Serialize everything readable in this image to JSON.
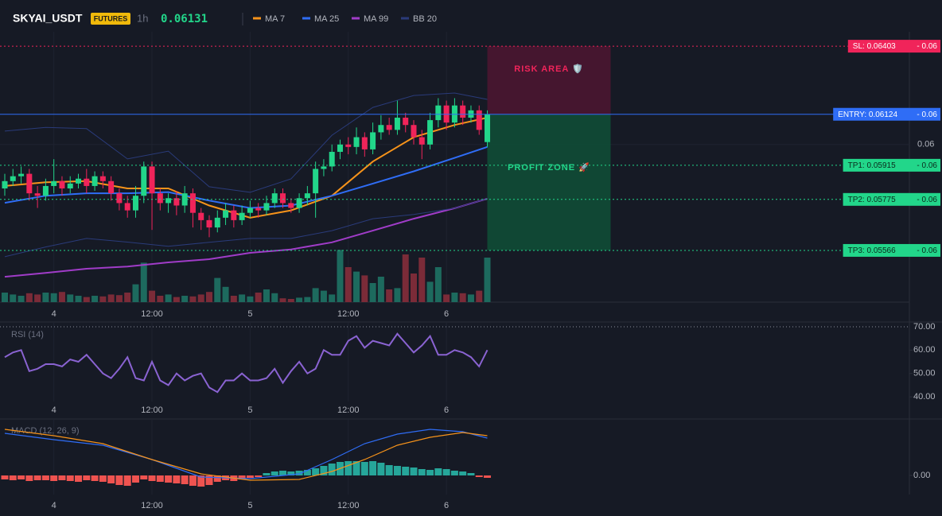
{
  "chart_data": {
    "type": "candlestick",
    "symbol": "SKYAI_USDT",
    "badge": "FUTURES",
    "interval": "1h",
    "last_price": 0.06131,
    "categories": [
      null,
      null,
      null,
      null,
      null,
      null,
      "4",
      null,
      null,
      null,
      null,
      null,
      null,
      null,
      null,
      null,
      null,
      null,
      "12:00",
      null,
      null,
      null,
      null,
      null,
      null,
      null,
      null,
      null,
      null,
      null,
      "5",
      null,
      null,
      null,
      null,
      null,
      null,
      null,
      null,
      null,
      null,
      null,
      "12:00",
      null,
      null,
      null,
      null,
      null,
      null,
      null,
      null,
      null,
      null,
      null,
      "6",
      null,
      null,
      null,
      null,
      null
    ],
    "open": [
      0.0582,
      0.0585,
      0.0587,
      0.0588,
      0.058,
      0.0579,
      0.0583,
      0.0585,
      0.0582,
      0.0584,
      0.0586,
      0.0583,
      0.0587,
      0.0585,
      0.058,
      0.0576,
      0.0573,
      0.0579,
      0.0591,
      0.058,
      0.0576,
      0.0578,
      0.0575,
      0.058,
      0.0572,
      0.0569,
      0.0566,
      0.057,
      0.0573,
      0.0569,
      0.0572,
      0.0574,
      0.0573,
      0.0576,
      0.058,
      0.0576,
      0.0574,
      0.0578,
      0.058,
      0.059,
      0.0591,
      0.0597,
      0.06,
      0.0599,
      0.0603,
      0.0598,
      0.0605,
      0.0608,
      0.0606,
      0.0611,
      0.0608,
      0.0603,
      0.06,
      0.061,
      0.0616,
      0.0609,
      0.0616,
      0.0611,
      0.0614,
      0.0601
    ],
    "high": [
      0.0588,
      0.059,
      0.0591,
      0.059,
      0.0583,
      0.0586,
      0.0594,
      0.0587,
      0.0587,
      0.0588,
      0.059,
      0.0589,
      0.0589,
      0.0587,
      0.0582,
      0.0579,
      0.0583,
      0.0593,
      0.0593,
      0.0582,
      0.058,
      0.0581,
      0.0583,
      0.0582,
      0.0574,
      0.0571,
      0.0573,
      0.0576,
      0.0575,
      0.0575,
      0.0577,
      0.0576,
      0.0579,
      0.0582,
      0.0582,
      0.0578,
      0.058,
      0.0583,
      0.0593,
      0.0594,
      0.06,
      0.0602,
      0.0603,
      0.0607,
      0.0605,
      0.0609,
      0.0612,
      0.0611,
      0.0618,
      0.0613,
      0.061,
      0.0606,
      0.0613,
      0.0619,
      0.0618,
      0.0619,
      0.0618,
      0.0616,
      0.0616,
      0.0614
    ],
    "low": [
      0.0579,
      0.0583,
      0.0584,
      0.0577,
      0.0574,
      0.0577,
      0.058,
      0.0579,
      0.058,
      0.0582,
      0.058,
      0.0581,
      0.0582,
      0.0577,
      0.0573,
      0.057,
      0.057,
      0.0576,
      0.0565,
      0.0573,
      0.0572,
      0.0571,
      0.0572,
      0.0566,
      0.0565,
      0.0562,
      0.0564,
      0.0567,
      0.0566,
      0.0567,
      0.057,
      0.057,
      0.0571,
      0.0574,
      0.0574,
      0.0572,
      0.0572,
      0.0575,
      0.057,
      0.0587,
      0.0589,
      0.0594,
      0.0596,
      0.0596,
      0.0595,
      0.0596,
      0.0602,
      0.0604,
      0.0604,
      0.0605,
      0.06,
      0.0594,
      0.0598,
      0.0607,
      0.0606,
      0.0607,
      0.0608,
      0.0609,
      0.0604,
      0.0599
    ],
    "close": [
      0.0585,
      0.0587,
      0.0588,
      0.058,
      0.0579,
      0.0583,
      0.0585,
      0.0582,
      0.0584,
      0.0586,
      0.0583,
      0.0587,
      0.0585,
      0.058,
      0.0576,
      0.0573,
      0.0579,
      0.0591,
      0.058,
      0.0576,
      0.0578,
      0.0575,
      0.058,
      0.0572,
      0.0569,
      0.0566,
      0.057,
      0.0573,
      0.0569,
      0.0572,
      0.0574,
      0.0573,
      0.0576,
      0.058,
      0.0576,
      0.0574,
      0.0578,
      0.058,
      0.059,
      0.0591,
      0.0597,
      0.06,
      0.0599,
      0.0603,
      0.0598,
      0.0605,
      0.0608,
      0.0606,
      0.0611,
      0.0608,
      0.0603,
      0.06,
      0.061,
      0.0616,
      0.0609,
      0.0616,
      0.0611,
      0.0614,
      0.0606,
      0.06124
    ],
    "up_color": "#22d68a",
    "down_color": "#f0245a",
    "ylim": [
      0.05354,
      0.06462
    ],
    "yticks": [
      0.06
    ],
    "overlays": [
      {
        "name": "MA 7",
        "color": "#f7931a",
        "x": [
          0,
          5,
          10,
          15,
          20,
          25,
          30,
          35,
          40,
          45,
          50,
          55,
          59
        ],
        "values": [
          0.0583,
          0.05845,
          0.0585,
          0.0582,
          0.0582,
          0.0575,
          0.057,
          0.0573,
          0.0579,
          0.0593,
          0.0603,
          0.0608,
          0.0611
        ]
      },
      {
        "name": "MA 25",
        "color": "#2f6df6",
        "x": [
          0,
          5,
          10,
          15,
          20,
          25,
          30,
          35,
          40,
          45,
          50,
          55,
          59
        ],
        "values": [
          0.05761,
          0.0579,
          0.058,
          0.058,
          0.05805,
          0.0577,
          0.0574,
          0.0575,
          0.0579,
          0.0584,
          0.0589,
          0.05945,
          0.0599
        ]
      },
      {
        "name": "MA 99",
        "color": "#a03cc8",
        "x": [
          0,
          5,
          10,
          15,
          20,
          25,
          30,
          35,
          40,
          45,
          50,
          55,
          59
        ],
        "values": [
          0.05458,
          0.05474,
          0.05491,
          0.055,
          0.05517,
          0.0553,
          0.05556,
          0.0557,
          0.05599,
          0.05647,
          0.05696,
          0.05739,
          0.05778
        ]
      },
      {
        "name": "BB 20",
        "color": "#2a3b7a",
        "x": [
          0,
          5,
          10,
          15,
          20,
          25,
          30,
          35,
          40,
          45,
          50,
          55,
          59
        ],
        "values": [
          0.06055,
          0.0607,
          0.06065,
          0.05941,
          0.05973,
          0.05827,
          0.05804,
          0.05859,
          0.06038,
          0.06152,
          0.06201,
          0.06211,
          0.06185
        ],
        "lower": [
          0.0554,
          0.0558,
          0.05615,
          0.056,
          0.05583,
          0.05599,
          0.05615,
          0.05615,
          0.05647,
          0.05696,
          0.05713,
          0.05739,
          0.05778
        ]
      }
    ],
    "levels": [
      {
        "label": "SL: 0.06403",
        "price": 0.06403,
        "axis_label": "- 0.06",
        "color": "#f0245a"
      },
      {
        "label": "ENTRY: 0.06124",
        "price": 0.06124,
        "axis_label": "- 0.06",
        "color": "#2f6df6"
      },
      {
        "label": "TP1: 0.05915",
        "price": 0.05915,
        "axis_label": "- 0.06",
        "color": "#22d68a"
      },
      {
        "label": "TP2: 0.05775",
        "price": 0.05775,
        "axis_label": "- 0.06",
        "color": "#22d68a"
      },
      {
        "label": "TP3: 0.05566",
        "price": 0.05566,
        "axis_label": "- 0.06",
        "color": "#22d68a"
      }
    ],
    "zones": [
      {
        "label": "RISK AREA 🛡️",
        "color": "#4a1631",
        "text_color": "#f0245a"
      },
      {
        "label": "PROFIT ZONE 🚀",
        "color": "#0f4d36",
        "text_color": "#22d68a"
      }
    ],
    "volume": {
      "values": [
        15,
        12,
        10,
        14,
        12,
        15,
        14,
        16,
        12,
        10,
        8,
        10,
        9,
        12,
        11,
        15,
        28,
        62,
        18,
        10,
        12,
        8,
        10,
        9,
        12,
        16,
        38,
        24,
        10,
        12,
        9,
        15,
        20,
        14,
        6,
        5,
        7,
        8,
        22,
        18,
        12,
        82,
        55,
        48,
        42,
        30,
        40,
        20,
        22,
        75,
        45,
        70,
        32,
        55,
        12,
        15,
        14,
        12,
        18,
        70
      ],
      "ylim": [
        0,
        100
      ],
      "up_color": "#1d6a5e",
      "down_color": "#7b2b38"
    },
    "rsi": {
      "title": "RSI (14)",
      "color": "#8a63d2",
      "ylim": [
        38,
        71
      ],
      "yticks": [
        {
          "value": 70,
          "label": "70.00"
        },
        {
          "value": 60,
          "label": "60.00"
        },
        {
          "value": 50,
          "label": "50.00"
        },
        {
          "value": 40,
          "label": "40.00"
        }
      ],
      "values": [
        57,
        59,
        60,
        51,
        52,
        54,
        54,
        53,
        56,
        55,
        58,
        54,
        50,
        48,
        52,
        57,
        48,
        47,
        55,
        47,
        45,
        50,
        47,
        49,
        50,
        44,
        42,
        47,
        47,
        50,
        47,
        47,
        48,
        52,
        46,
        51,
        55,
        50,
        52,
        60,
        58,
        58,
        64,
        66,
        61,
        64,
        63,
        62,
        67,
        63,
        59,
        62,
        66,
        58,
        58,
        60,
        59,
        57,
        53,
        60
      ]
    },
    "macd": {
      "title": "MACD (12, 26, 9)",
      "ylim": [
        -0.00024,
        0.0007
      ],
      "yticks": [
        {
          "value": 0,
          "label": "0.00"
        }
      ],
      "x": [
        0,
        6,
        12,
        18,
        24,
        30,
        36,
        40,
        44,
        48,
        52,
        56,
        59
      ],
      "macd": {
        "color": "#2f6df6",
        "values": [
          0.00053,
          0.00045,
          0.00038,
          0.0002,
          -2e-05,
          -4e-05,
          2e-05,
          0.0002,
          0.0004,
          0.00052,
          0.00058,
          0.00055,
          0.00047
        ]
      },
      "signal": {
        "color": "#f7931a",
        "values": [
          0.00058,
          0.0005,
          0.0004,
          0.0002,
          2e-05,
          -6e-05,
          -5e-05,
          5e-05,
          0.0002,
          0.00038,
          0.00048,
          0.00054,
          0.0005
        ]
      },
      "histogram": {
        "up_color": "#26a69a",
        "down_color": "#ef5350",
        "values": [
          -5e-05,
          -6e-05,
          -5e-05,
          -7e-05,
          -6e-05,
          -6e-05,
          -7e-05,
          -6e-05,
          -7e-05,
          -8e-05,
          -6e-05,
          -7e-05,
          -8e-05,
          -0.0001,
          -0.00012,
          -0.00013,
          -9e-05,
          -5e-05,
          -7e-05,
          -8e-05,
          -9e-05,
          -0.0001,
          -0.00011,
          -0.00013,
          -0.00014,
          -0.00012,
          -8e-05,
          -6e-05,
          -7e-05,
          -5e-05,
          -3e-05,
          -2e-05,
          3e-05,
          5e-05,
          6e-05,
          5e-05,
          6e-05,
          7e-05,
          9e-05,
          0.00012,
          0.00015,
          0.00017,
          0.00018,
          0.00018,
          0.00017,
          0.00018,
          0.00016,
          0.00013,
          0.00012,
          0.00011,
          0.0001,
          8e-05,
          7e-05,
          9e-05,
          8e-05,
          6e-05,
          5e-05,
          3e-05,
          -2e-05,
          -3e-05
        ]
      }
    }
  }
}
